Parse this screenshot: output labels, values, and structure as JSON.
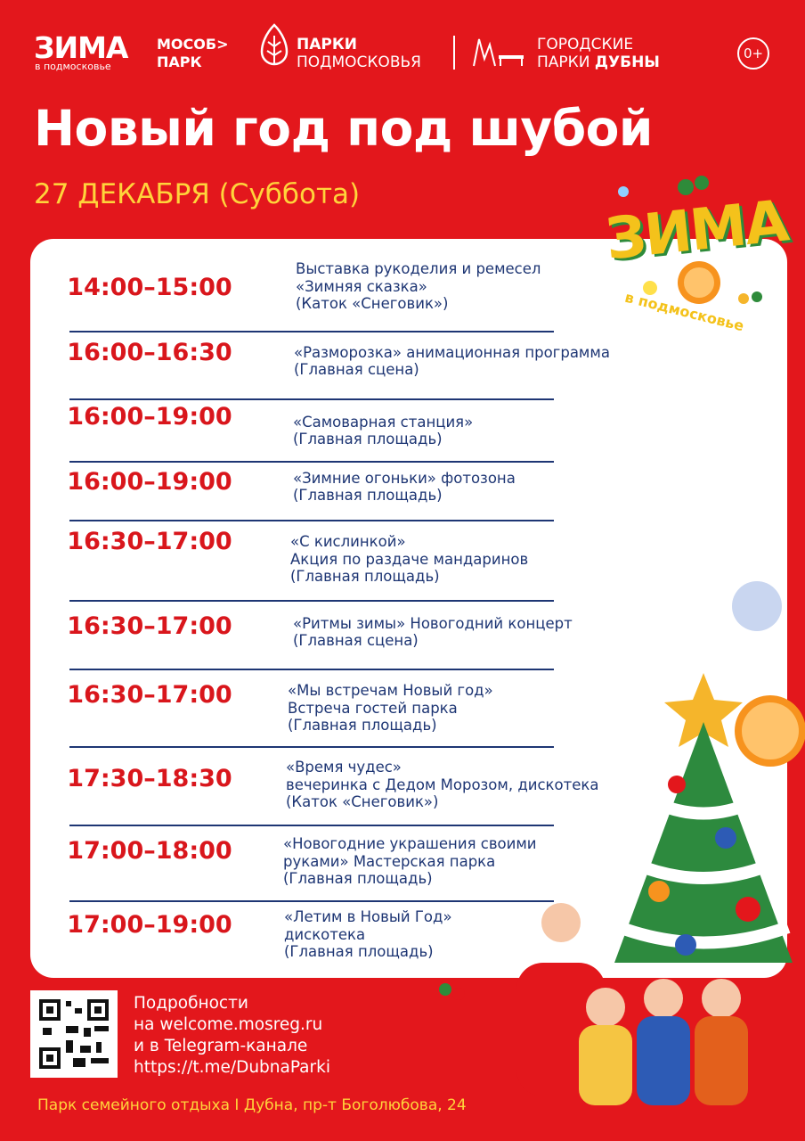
{
  "header": {
    "zima": "ЗИМА",
    "zima_sub": "в подмосковье",
    "mosobl": [
      "МОСОБ>",
      "ПАРК"
    ],
    "parks": [
      "ПАРКИ",
      "ПОДМОСКОВЬЯ"
    ],
    "city": [
      "ГОРОДСКИЕ",
      "ПАРКИ",
      "ДУБНЫ"
    ],
    "age": "0+"
  },
  "title": "Новый год под шубой",
  "date": "27 ДЕКАБРЯ (Суббота)",
  "badge": {
    "word": "ЗИМА",
    "sub": "в подмосковье"
  },
  "schedule": [
    {
      "time": "14:00–15:00",
      "lines": [
        "Выставка рукоделия и ремесел",
        "«Зимняя сказка»",
        "(Каток «Снеговик»)"
      ]
    },
    {
      "time": "16:00–16:30",
      "lines": [
        "«Разморозка» анимационная программа",
        "(Главная сцена)"
      ]
    },
    {
      "time": "16:00–19:00",
      "lines": [
        "«Самоварная станция»",
        "(Главная площадь)"
      ]
    },
    {
      "time": "16:00–19:00",
      "lines": [
        "«Зимние огоньки» фотозона",
        "(Главная площадь)"
      ]
    },
    {
      "time": "16:30–17:00",
      "lines": [
        "«С кислинкой»",
        "Акция по раздаче мандаринов",
        "(Главная площадь)"
      ]
    },
    {
      "time": "16:30–17:00",
      "lines": [
        "«Ритмы зимы» Новогодний концерт",
        "(Главная сцена)"
      ]
    },
    {
      "time": "16:30–17:00",
      "lines": [
        "«Мы встречам Новый год»",
        "Встреча гостей парка",
        "(Главная площадь)"
      ]
    },
    {
      "time": "17:30–18:30",
      "lines": [
        "«Время чудес»",
        "вечеринка с Дедом Морозом, дискотека",
        "(Каток «Снеговик»)"
      ]
    },
    {
      "time": "17:00–18:00",
      "lines": [
        "«Новогодние украшения своими",
        "руками» Мастерская парка",
        "(Главная площадь)"
      ]
    },
    {
      "time": "17:00–19:00",
      "lines": [
        "«Летим в Новый Год»",
        "дискотека",
        "(Главная площадь)"
      ]
    }
  ],
  "info": [
    "Подробности",
    "на welcome.mosreg.ru",
    "и в Telegram-канале",
    "https://t.me/DubnaParki"
  ],
  "address": "Парк семейного отдыха I Дубна, пр-т Боголюбова, 24"
}
